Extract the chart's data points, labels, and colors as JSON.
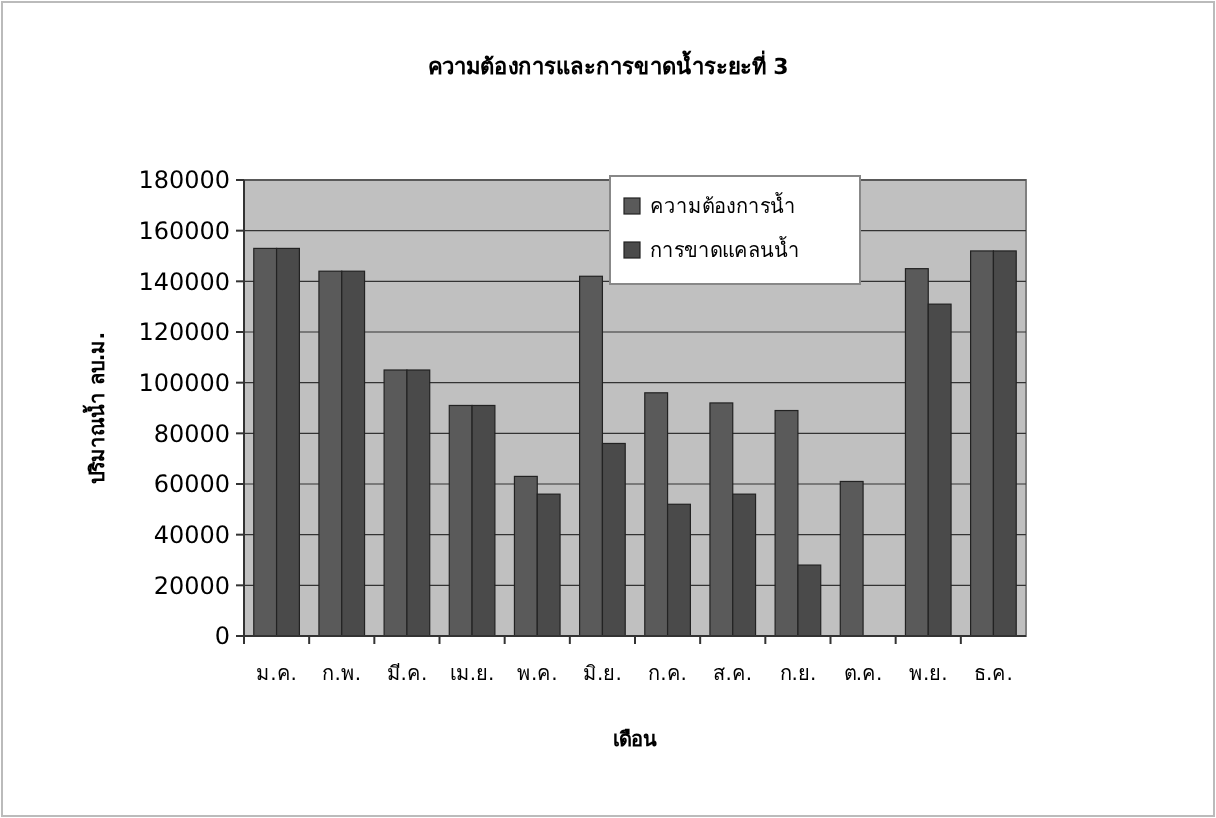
{
  "chart_data": {
    "type": "bar",
    "title": "ความต้องการและการขาดน้ำระยะที่ 3",
    "xlabel": "เดือน",
    "ylabel": "ปริมาณน้ำ ลบ.ม.",
    "categories": [
      "ม.ค.",
      "ก.พ.",
      "มี.ค.",
      "เม.ย.",
      "พ.ค.",
      "มิ.ย.",
      "ก.ค.",
      "ส.ค.",
      "ก.ย.",
      "ต.ค.",
      "พ.ย.",
      "ธ.ค."
    ],
    "series": [
      {
        "name": "ความต้องการน้ำ",
        "color": "#5a5a5a",
        "values": [
          153000,
          144000,
          105000,
          91000,
          63000,
          142000,
          96000,
          92000,
          89000,
          61000,
          145000,
          152000
        ]
      },
      {
        "name": "การขาดแคลนน้ำ",
        "color": "#4a4a4a",
        "values": [
          153000,
          144000,
          105000,
          91000,
          56000,
          76000,
          52000,
          56000,
          28000,
          null,
          131000,
          152000
        ]
      }
    ],
    "ylim": [
      0,
      180000
    ],
    "yticks": [
      0,
      20000,
      40000,
      60000,
      80000,
      100000,
      120000,
      140000,
      160000,
      180000
    ],
    "grid": "y",
    "legend": "top"
  }
}
